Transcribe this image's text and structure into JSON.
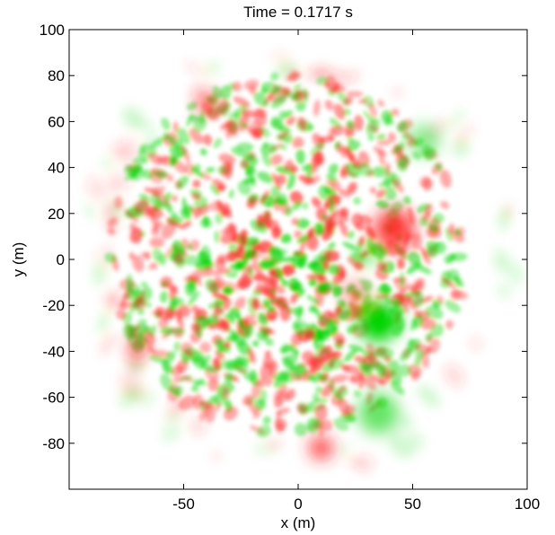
{
  "chart_data": {
    "type": "heatmap",
    "title": "Time = 0.1717 s",
    "xlabel": "x (m)",
    "ylabel": "y (m)",
    "xlim": [
      -100,
      100
    ],
    "ylim": [
      -100,
      100
    ],
    "xticks": [
      -50,
      0,
      50,
      100
    ],
    "yticks": [
      100,
      80,
      60,
      40,
      20,
      0,
      -20,
      -40,
      -60,
      -80
    ],
    "grid": false,
    "colors": {
      "positive": "#ff2a2a",
      "negative": "#00d400",
      "zero": "#ffffff"
    },
    "blobs": [
      {
        "x": 42,
        "y": 13,
        "r": 9,
        "value": 0.9
      },
      {
        "x": 35,
        "y": -27,
        "r": 9,
        "value": -1.0
      },
      {
        "x": 35,
        "y": -67,
        "r": 9,
        "value": -0.6
      },
      {
        "x": 55,
        "y": 52,
        "r": 7,
        "value": -0.45
      },
      {
        "x": 30,
        "y": 2,
        "r": 4,
        "value": -0.7
      },
      {
        "x": 25,
        "y": -15,
        "r": 6,
        "value": 0.45
      },
      {
        "x": 10,
        "y": -82,
        "r": 5,
        "value": 0.9
      },
      {
        "x": -70,
        "y": -38,
        "r": 4,
        "value": 0.9
      },
      {
        "x": -40,
        "y": 68,
        "r": 4,
        "value": 0.85
      }
    ]
  }
}
